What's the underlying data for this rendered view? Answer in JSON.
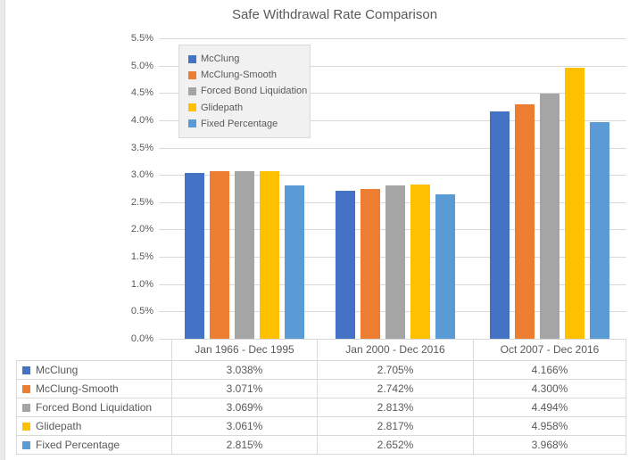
{
  "chart_data": {
    "type": "bar",
    "title": "Safe Withdrawal Rate Comparison",
    "categories": [
      "Jan 1966 - Dec 1995",
      "Jan 2000 - Dec 2016",
      "Oct 2007 - Dec 2016"
    ],
    "series": [
      {
        "name": "McClung",
        "color": "#4472C4",
        "values": [
          3.038,
          2.705,
          4.166
        ]
      },
      {
        "name": "McClung-Smooth",
        "color": "#ED7D31",
        "values": [
          3.071,
          2.742,
          4.3
        ]
      },
      {
        "name": "Forced Bond Liquidation",
        "color": "#A5A5A5",
        "values": [
          3.069,
          2.813,
          4.494
        ]
      },
      {
        "name": "Glidepath",
        "color": "#FFC000",
        "values": [
          3.061,
          2.817,
          4.958
        ]
      },
      {
        "name": "Fixed Percentage",
        "color": "#5B9BD5",
        "values": [
          2.815,
          2.652,
          3.968
        ]
      }
    ],
    "y_axis": {
      "min": 0,
      "max": 5.5,
      "step": 0.5,
      "tick_labels": [
        "5.5%",
        "5.0%",
        "4.5%",
        "4.0%",
        "3.5%",
        "3.0%",
        "2.5%",
        "2.0%",
        "1.5%",
        "1.0%",
        "0.5%",
        "0.0%"
      ]
    },
    "legend": {
      "position": "top-left",
      "entries": [
        "McClung",
        "McClung-Smooth",
        "Forced Bond Liquidation",
        "Glidepath",
        "Fixed Percentage"
      ]
    },
    "grid": true
  },
  "table": {
    "category_headers": [
      "Jan 1966 - Dec 1995",
      "Jan 2000 - Dec 2016",
      "Oct 2007 - Dec 2016"
    ],
    "rows": [
      {
        "label": "McClung",
        "swatch_color": "#4472C4",
        "values": [
          "3.038%",
          "2.705%",
          "4.166%"
        ]
      },
      {
        "label": "McClung-Smooth",
        "swatch_color": "#ED7D31",
        "values": [
          "3.071%",
          "2.742%",
          "4.300%"
        ]
      },
      {
        "label": "Forced Bond Liquidation",
        "swatch_color": "#A5A5A5",
        "values": [
          "3.069%",
          "2.813%",
          "4.494%"
        ]
      },
      {
        "label": "Glidepath",
        "swatch_color": "#FFC000",
        "values": [
          "3.061%",
          "2.817%",
          "4.958%"
        ]
      },
      {
        "label": "Fixed Percentage",
        "swatch_color": "#5B9BD5",
        "values": [
          "2.815%",
          "2.652%",
          "3.968%"
        ]
      }
    ]
  },
  "colors": {
    "gridline": "#D9D9D9",
    "table_border": "#D9D9D9",
    "text": "#595959",
    "legend_bg": "#F1F1F1",
    "edge_strip": "#E9E9E9"
  }
}
